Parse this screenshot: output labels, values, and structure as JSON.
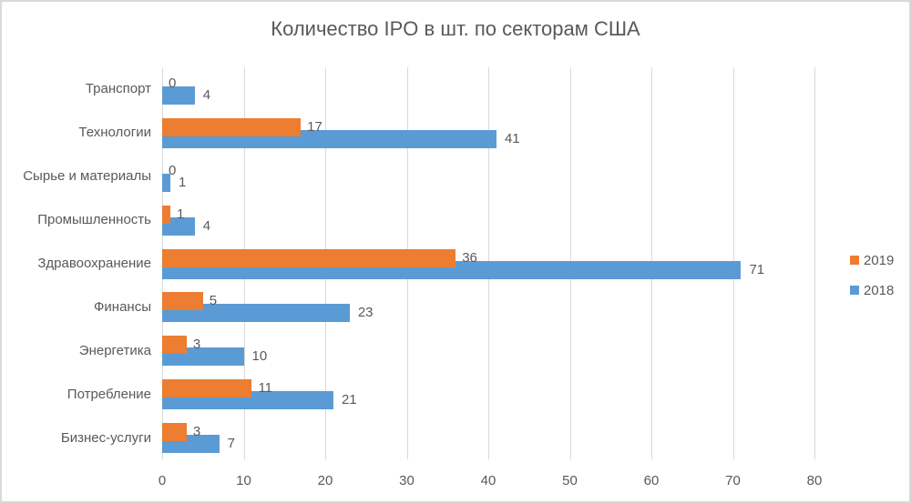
{
  "figure": {
    "background": "#FFFFFF",
    "border_color": "#D9D9D9",
    "text_color": "#595959",
    "gridline_color": "#D9D9D9"
  },
  "chart_data": {
    "type": "bar",
    "orientation": "horizontal",
    "title": "Количество IPO в шт. по секторам США",
    "categories": [
      "Транспорт",
      "Технологии",
      "Сырье и материалы",
      "Промышленность",
      "Здравоохранение",
      "Финансы",
      "Энергетика",
      "Потребление",
      "Бизнес-услуги"
    ],
    "series": [
      {
        "name": "2019",
        "color": "#ED7D31",
        "values": [
          0,
          17,
          0,
          1,
          36,
          5,
          3,
          11,
          3
        ]
      },
      {
        "name": "2018",
        "color": "#5B9BD5",
        "values": [
          4,
          41,
          1,
          4,
          71,
          23,
          10,
          21,
          7
        ]
      }
    ],
    "x_ticks": [
      0,
      10,
      20,
      30,
      40,
      50,
      60,
      70,
      80
    ],
    "xlim": [
      0,
      80
    ],
    "grid": true,
    "legend_position": "right",
    "data_labels": true
  }
}
